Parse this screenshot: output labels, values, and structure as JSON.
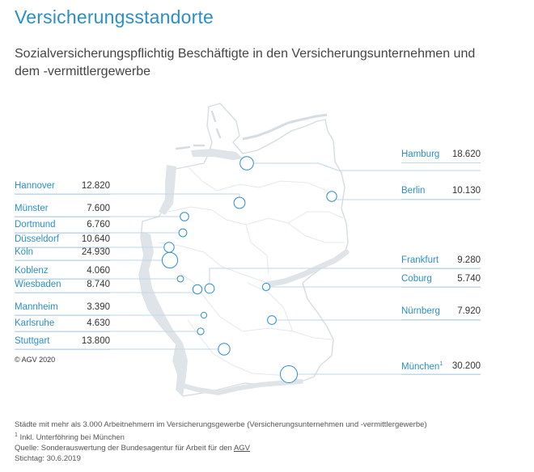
{
  "title": "Versicherungsstandorte",
  "subtitle": "Sozialversicherungspflichtig Beschäftigte in den Versicherungsunternehmen und dem -vermittlergewerbe",
  "colors": {
    "accent": "#2a8fc8",
    "map_outline": "#d5dde3",
    "map_fill_dark": "#dfe4e8",
    "line": "#bfd7e8"
  },
  "cities_left": [
    {
      "name": "Hannover",
      "value": "12.820"
    },
    {
      "name": "Münster",
      "value": "7.600"
    },
    {
      "name": "Dortmund",
      "value": "6.760"
    },
    {
      "name": "Düsseldorf",
      "value": "10.640"
    },
    {
      "name": "Köln",
      "value": "24.930"
    },
    {
      "name": "Koblenz",
      "value": "4.060"
    },
    {
      "name": "Wiesbaden",
      "value": "8.740"
    },
    {
      "name": "Mannheim",
      "value": "3.390"
    },
    {
      "name": "Karlsruhe",
      "value": "4.630"
    },
    {
      "name": "Stuttgart",
      "value": "13.800"
    }
  ],
  "cities_right": [
    {
      "name": "Hamburg",
      "value": "18.620"
    },
    {
      "name": "Berlin",
      "value": "10.130"
    },
    {
      "name": "Frankfurt",
      "value": "9.280"
    },
    {
      "name": "Coburg",
      "value": "5.740"
    },
    {
      "name": "Nürnberg",
      "value": "7.920"
    },
    {
      "name": "München",
      "value": "30.200",
      "sup": "1"
    }
  ],
  "copyright": "© AGV 2020",
  "footer": {
    "line1": "Städte mit mehr als 3.000 Arbeitnehmern im Versicherungsgewerbe (Versicherungsunternehmen und -vermittlergewerbe)",
    "line2_sup": "1",
    "line2": " Inkl. Unterföhring bei München",
    "line3_prefix": "Quelle: Sonderauswertung der Bundesagentur für Arbeit für den ",
    "line3_link": "AGV",
    "line4": "Stichtag: 30.6.2019"
  }
}
